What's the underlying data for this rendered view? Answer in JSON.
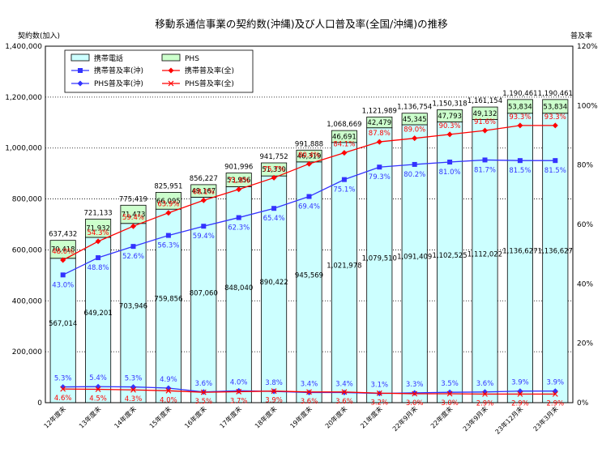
{
  "chart_data": {
    "type": "bar",
    "title": "移動系通信事業の契約数(沖縄)及び人口普及率(全国/沖縄)の推移",
    "ylabel": "契約数(加入)",
    "y2label": "普及率",
    "ylim": [
      0,
      1400000
    ],
    "y2lim": [
      0,
      120
    ],
    "yticks": [
      "0",
      "200,000",
      "400,000",
      "600,000",
      "800,000",
      "1,000,000",
      "1,200,000",
      "1,400,000"
    ],
    "y2ticks": [
      "0%",
      "20%",
      "40%",
      "60%",
      "80%",
      "100%",
      "120%"
    ],
    "grid": "horizontal-dotted",
    "legend_position": "top-left",
    "categories": [
      "12年度末",
      "13年度末",
      "14年度末",
      "15年度末",
      "16年度末",
      "17年度末",
      "18年度末",
      "19年度末",
      "20年度末",
      "21年度末",
      "22年9月末",
      "22年度末",
      "23年9月末",
      "23年12月末",
      "23年3月末"
    ],
    "bar_series": [
      {
        "name": "携帯電話",
        "color": "#ccffff",
        "values": [
          567014,
          649201,
          703946,
          759856,
          807060,
          848040,
          890422,
          945569,
          1021978,
          1079510,
          1091409,
          1102525,
          1112022,
          1136627,
          1136627
        ],
        "labels": [
          "567,014",
          "649,201",
          "703,946",
          "759,856",
          "807,060",
          "848,040",
          "890,422",
          "945,569",
          "1,021,978",
          "1,079,510",
          "1,091,409",
          "1,102,525",
          "1,112,022",
          "1,136,627",
          "1,136,627"
        ]
      },
      {
        "name": "PHS",
        "color": "#ccffcc",
        "values": [
          70418,
          71932,
          71473,
          66095,
          49167,
          53956,
          51330,
          46319,
          46691,
          42479,
          45345,
          47793,
          49132,
          53834,
          53834
        ],
        "labels": [
          "70,418",
          "71,932",
          "71,473",
          "66,095",
          "49,167",
          "53,956",
          "51,330",
          "46,319",
          "46,691",
          "42,479",
          "45,345",
          "47,793",
          "49,132",
          "53,834",
          "53,834"
        ]
      }
    ],
    "totals": [
      637432,
      721133,
      775419,
      825951,
      856227,
      901996,
      941752,
      991888,
      1068669,
      1121989,
      1136754,
      1150318,
      1161154,
      1190461,
      1190461
    ],
    "totals_labels": [
      "637,432",
      "721,133",
      "775,419",
      "825,951",
      "856,227",
      "901,996",
      "941,752",
      "991,888",
      "1,068,669",
      "1,121,989",
      "1,136,754",
      "1,150,318",
      "1,161,154",
      "1,190,461",
      "1,190,461"
    ],
    "line_series": [
      {
        "name": "携帯普及率(沖)",
        "color": "#3333ff",
        "marker": "square",
        "values": [
          43.0,
          48.8,
          52.6,
          56.3,
          59.4,
          62.3,
          65.4,
          69.4,
          75.1,
          79.3,
          80.2,
          81.0,
          81.7,
          81.5,
          81.5
        ],
        "labels": [
          "43.0%",
          "48.8%",
          "52.6%",
          "56.3%",
          "59.4%",
          "62.3%",
          "65.4%",
          "69.4%",
          "75.1%",
          "79.3%",
          "80.2%",
          "81.0%",
          "81.7%",
          "81.5%",
          "81.5%"
        ]
      },
      {
        "name": "携帯普及率(全)",
        "color": "#ff0000",
        "marker": "diamond",
        "values": [
          48.0,
          54.3,
          59.4,
          63.9,
          68.1,
          71.8,
          75.7,
          80.4,
          84.1,
          87.8,
          89.0,
          90.3,
          91.6,
          93.3,
          93.3
        ],
        "labels": [
          "48.0%",
          "54.3%",
          "59.4%",
          "63.9%",
          "68.1%",
          "71.8%",
          "75.7%",
          "80.4%",
          "84.1%",
          "87.8%",
          "89.0%",
          "90.3%",
          "91.6%",
          "93.3%",
          "93.3%"
        ]
      },
      {
        "name": "PHS普及率(沖)",
        "color": "#3333ff",
        "marker": "diamond",
        "values": [
          5.3,
          5.4,
          5.3,
          4.9,
          3.6,
          4.0,
          3.8,
          3.4,
          3.4,
          3.1,
          3.3,
          3.5,
          3.6,
          3.9,
          3.9
        ],
        "labels": [
          "5.3%",
          "5.4%",
          "5.3%",
          "4.9%",
          "3.6%",
          "4.0%",
          "3.8%",
          "3.4%",
          "3.4%",
          "3.1%",
          "3.3%",
          "3.5%",
          "3.6%",
          "3.9%",
          "3.9%"
        ]
      },
      {
        "name": "PHS普及率(全)",
        "color": "#ff0000",
        "marker": "x",
        "values": [
          4.6,
          4.5,
          4.3,
          4.0,
          3.5,
          3.7,
          3.9,
          3.6,
          3.6,
          3.2,
          3.0,
          3.0,
          2.9,
          2.9,
          2.9
        ],
        "labels": [
          "4.6%",
          "4.5%",
          "4.3%",
          "4.0%",
          "3.5%",
          "3.7%",
          "3.9%",
          "3.6%",
          "3.6%",
          "3.2%",
          "3.0%",
          "3.0%",
          "2.9%",
          "2.9%",
          "2.9%"
        ]
      }
    ]
  }
}
